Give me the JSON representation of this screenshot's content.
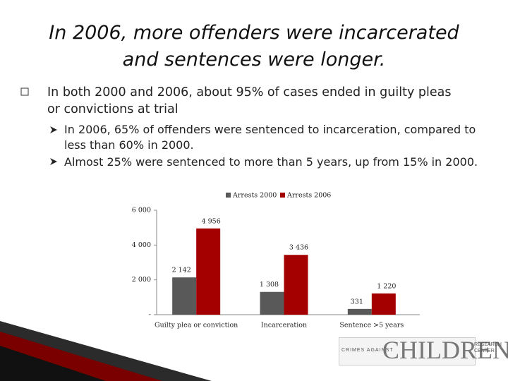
{
  "slide": {
    "title": "In 2006, more offenders were incarcerated and sentences were longer.",
    "bullets": [
      {
        "text": "In both 2000 and 2006, about 95% of cases ended in guilty pleas or convictions at trial",
        "sub": [
          "In 2006, 65% of offenders were sentenced to incarceration, compared to less than 60% in 2000.",
          "Almost 25% were sentenced to more than 5 years, up from 15% in 2000."
        ]
      }
    ],
    "logo": {
      "main": "CHILDREN",
      "left": "CRIMES AGAINST",
      "right": "RESEARCH CENTER"
    }
  },
  "chart_data": {
    "type": "bar",
    "categories": [
      "Guilty plea or conviction",
      "Incarceration",
      "Sentence >5 years"
    ],
    "series": [
      {
        "name": "Arrests 2000",
        "color": "#595959",
        "values": [
          2142,
          1308,
          331
        ],
        "value_labels": [
          "2 142",
          "1 308",
          "331"
        ]
      },
      {
        "name": "Arrests 2006",
        "color": "#a50000",
        "values": [
          4956,
          3436,
          1220
        ],
        "value_labels": [
          "4 956",
          "3 436",
          "1 220"
        ]
      }
    ],
    "ylim": [
      0,
      6000
    ],
    "yticks": [
      {
        "value": 0,
        "label": "-"
      },
      {
        "value": 2000,
        "label": "2 000"
      },
      {
        "value": 4000,
        "label": "4 000"
      },
      {
        "value": 6000,
        "label": "6 000"
      }
    ],
    "legend": "top",
    "grid": false
  }
}
